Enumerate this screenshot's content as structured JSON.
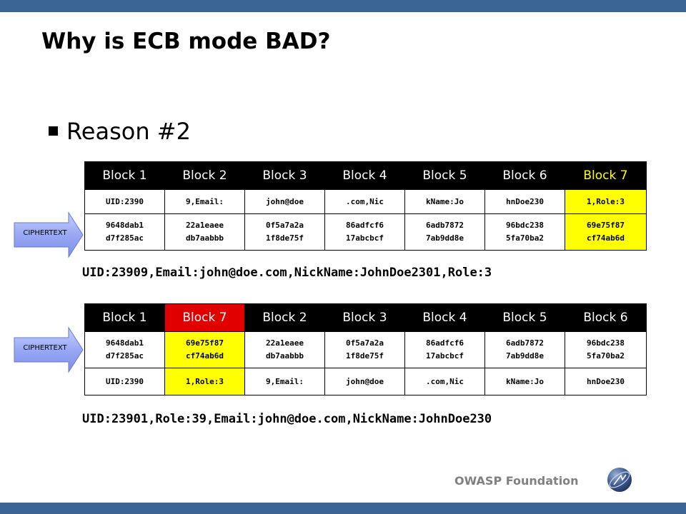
{
  "slide": {
    "title": "Why is ECB mode BAD?",
    "bullet": "Reason #2",
    "arrow_label": "CIPHERTEXT",
    "footer": "OWASP Foundation"
  },
  "table1": {
    "headers": [
      "Block 1",
      "Block 2",
      "Block 3",
      "Block 4",
      "Block 5",
      "Block 6",
      "Block 7"
    ],
    "row1": [
      "UID:2390",
      "9,Email:",
      "john@doe",
      ".com,Nic",
      "kName:Jo",
      "hnDoe230",
      "1,Role:3"
    ],
    "row2": [
      [
        "9648dab1",
        "d7f285ac"
      ],
      [
        "22a1eaee",
        "db7aabbb"
      ],
      [
        "0f5a7a2a",
        "1f8de75f"
      ],
      [
        "86adfcf6",
        "17abcbcf"
      ],
      [
        "6adb7872",
        "7ab9dd8e"
      ],
      [
        "96bdc238",
        "5fa70ba2"
      ],
      [
        "69e75f87",
        "cf74ab6d"
      ]
    ],
    "plaintext": "UID:23909,Email:john@doe.com,NickName:JohnDoe2301,Role:3"
  },
  "table2": {
    "headers": [
      "Block 1",
      "Block 7",
      "Block 2",
      "Block 3",
      "Block 4",
      "Block 5",
      "Block 6"
    ],
    "row1": [
      [
        "9648dab1",
        "d7f285ac"
      ],
      [
        "69e75f87",
        "cf74ab6d"
      ],
      [
        "22a1eaee",
        "db7aabbb"
      ],
      [
        "0f5a7a2a",
        "1f8de75f"
      ],
      [
        "86adfcf6",
        "17abcbcf"
      ],
      [
        "6adb7872",
        "7ab9dd8e"
      ],
      [
        "96bdc238",
        "5fa70ba2"
      ]
    ],
    "row2": [
      "UID:2390",
      "1,Role:3",
      "9,Email:",
      "john@doe",
      ".com,Nic",
      "kName:Jo",
      "hnDoe230"
    ],
    "plaintext": "UID:23901,Role:39,Email:john@doe.com,NickName:JohnDoe230"
  },
  "colors": {
    "bar": "#3a6595",
    "highlight_yellow": "#ffff00",
    "highlight_red": "#e00000",
    "arrow_fill": "#8fa0f0"
  }
}
